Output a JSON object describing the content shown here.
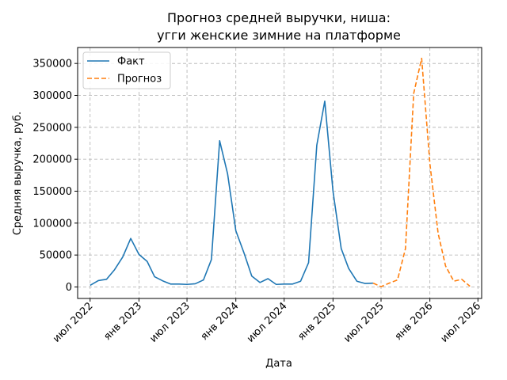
{
  "chart_data": {
    "type": "line",
    "title": [
      "Прогноз средней выручки, ниша:",
      "угги женские зимние на платформе"
    ],
    "xlabel": "Дата",
    "ylabel": "Средняя выручка, руб.",
    "xlim": [
      "2022-05-15",
      "2026-07-15"
    ],
    "ylim": [
      -18000,
      375000
    ],
    "grid": true,
    "legend_position": "top-left",
    "x_ticks": [
      {
        "date": "2022-07-01",
        "label": "июл 2022"
      },
      {
        "date": "2023-01-01",
        "label": "янв 2023"
      },
      {
        "date": "2023-07-01",
        "label": "июл 2023"
      },
      {
        "date": "2024-01-01",
        "label": "янв 2024"
      },
      {
        "date": "2024-07-01",
        "label": "июл 2024"
      },
      {
        "date": "2025-01-01",
        "label": "янв 2025"
      },
      {
        "date": "2025-07-01",
        "label": "июл 2025"
      },
      {
        "date": "2026-01-01",
        "label": "янв 2026"
      },
      {
        "date": "2026-07-01",
        "label": "июл 2026"
      }
    ],
    "y_ticks": [
      {
        "value": 0,
        "label": "0"
      },
      {
        "value": 50000,
        "label": "50000"
      },
      {
        "value": 100000,
        "label": "100000"
      },
      {
        "value": 150000,
        "label": "150000"
      },
      {
        "value": 200000,
        "label": "200000"
      },
      {
        "value": 250000,
        "label": "250000"
      },
      {
        "value": 300000,
        "label": "300000"
      },
      {
        "value": 350000,
        "label": "350000"
      }
    ],
    "series": [
      {
        "name": "Факт",
        "color": "#1f77b4",
        "style": "solid",
        "points": [
          {
            "x": "2022-07-01",
            "y": 2500
          },
          {
            "x": "2022-08-01",
            "y": 10000
          },
          {
            "x": "2022-09-01",
            "y": 12000
          },
          {
            "x": "2022-10-01",
            "y": 27000
          },
          {
            "x": "2022-11-01",
            "y": 47000
          },
          {
            "x": "2022-12-01",
            "y": 76000
          },
          {
            "x": "2023-01-01",
            "y": 51000
          },
          {
            "x": "2023-02-01",
            "y": 40000
          },
          {
            "x": "2023-03-01",
            "y": 16000
          },
          {
            "x": "2023-04-01",
            "y": 9500
          },
          {
            "x": "2023-05-01",
            "y": 4500
          },
          {
            "x": "2023-06-01",
            "y": 4500
          },
          {
            "x": "2023-07-01",
            "y": 4000
          },
          {
            "x": "2023-08-01",
            "y": 5000
          },
          {
            "x": "2023-09-01",
            "y": 11000
          },
          {
            "x": "2023-10-01",
            "y": 43000
          },
          {
            "x": "2023-11-01",
            "y": 229000
          },
          {
            "x": "2023-12-01",
            "y": 177000
          },
          {
            "x": "2024-01-01",
            "y": 88000
          },
          {
            "x": "2024-02-01",
            "y": 53000
          },
          {
            "x": "2024-03-01",
            "y": 17000
          },
          {
            "x": "2024-04-01",
            "y": 7000
          },
          {
            "x": "2024-05-01",
            "y": 13000
          },
          {
            "x": "2024-06-01",
            "y": 4000
          },
          {
            "x": "2024-07-01",
            "y": 4500
          },
          {
            "x": "2024-08-01",
            "y": 4500
          },
          {
            "x": "2024-09-01",
            "y": 9000
          },
          {
            "x": "2024-10-01",
            "y": 38000
          },
          {
            "x": "2024-11-01",
            "y": 222000
          },
          {
            "x": "2024-12-01",
            "y": 291000
          },
          {
            "x": "2025-01-01",
            "y": 150000
          },
          {
            "x": "2025-02-01",
            "y": 60000
          },
          {
            "x": "2025-03-01",
            "y": 29000
          },
          {
            "x": "2025-04-01",
            "y": 9000
          },
          {
            "x": "2025-05-01",
            "y": 5500
          },
          {
            "x": "2025-06-01",
            "y": 6000
          }
        ]
      },
      {
        "name": "Прогноз",
        "color": "#ff7f0e",
        "style": "dashed",
        "points": [
          {
            "x": "2025-06-01",
            "y": 6000
          },
          {
            "x": "2025-07-01",
            "y": 500
          },
          {
            "x": "2025-08-01",
            "y": 6000
          },
          {
            "x": "2025-09-01",
            "y": 11000
          },
          {
            "x": "2025-10-01",
            "y": 60000
          },
          {
            "x": "2025-11-01",
            "y": 303000
          },
          {
            "x": "2025-12-01",
            "y": 358000
          },
          {
            "x": "2026-01-01",
            "y": 193000
          },
          {
            "x": "2026-02-01",
            "y": 84000
          },
          {
            "x": "2026-03-01",
            "y": 33000
          },
          {
            "x": "2026-04-01",
            "y": 9000
          },
          {
            "x": "2026-05-01",
            "y": 12000
          },
          {
            "x": "2026-06-01",
            "y": 1000
          }
        ]
      }
    ]
  }
}
